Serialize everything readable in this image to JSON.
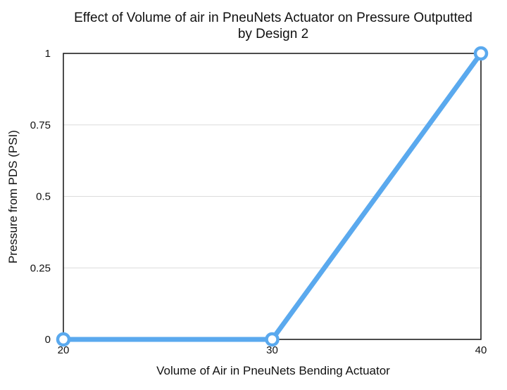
{
  "chart_data": {
    "type": "line",
    "title_lines": [
      "Effect of Volume of air in PneuNets Actuator on Pressure Outputted",
      "by Design 2"
    ],
    "xlabel": "Volume of Air in PneuNets Bending Actuator",
    "ylabel": "Pressure from PDS (PSI)",
    "xlim": [
      20,
      40
    ],
    "ylim": [
      0,
      1
    ],
    "x_ticks": [
      20,
      30,
      40
    ],
    "y_ticks": [
      0,
      0.25,
      0.5,
      0.75,
      1
    ],
    "x_tick_labels": [
      "20",
      "30",
      "40"
    ],
    "y_tick_labels": [
      "0",
      "0.25",
      "0.5",
      "0.75",
      "1"
    ],
    "grid": true,
    "series": [
      {
        "x": [
          20,
          30,
          40
        ],
        "y": [
          0,
          0,
          1
        ],
        "color": "#5aa9ee"
      }
    ]
  }
}
